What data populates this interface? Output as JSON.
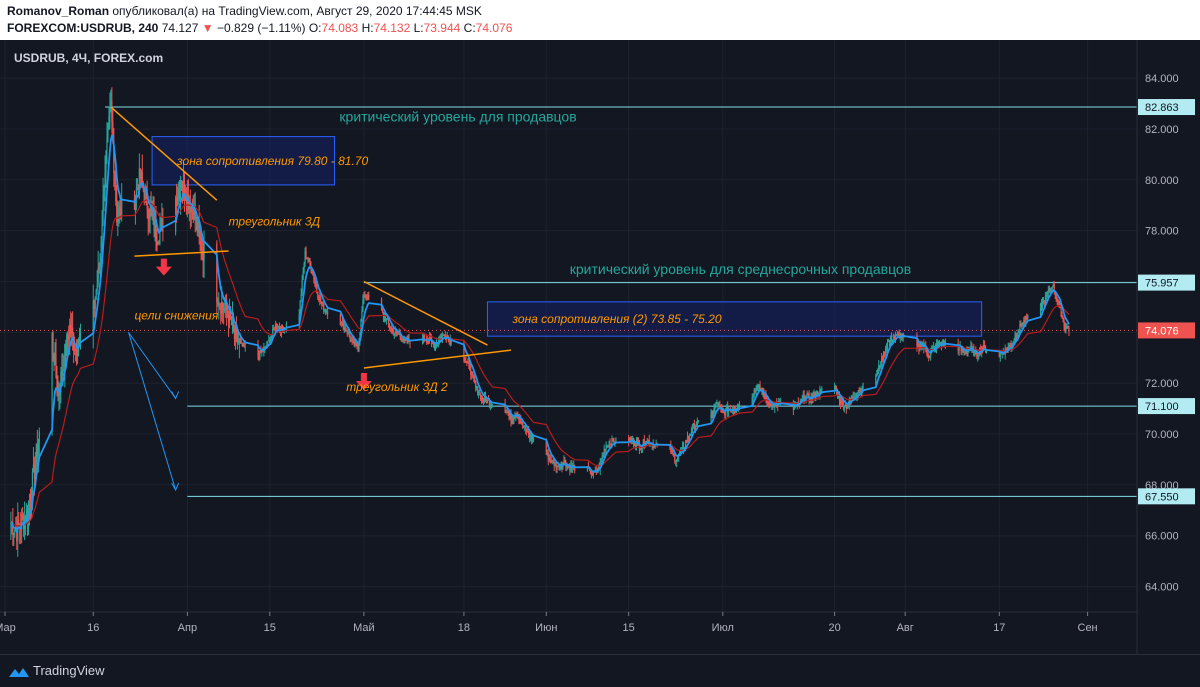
{
  "header": {
    "author": "Romanov_Roman",
    "published_text": "опубликовал(а) на TradingView.com, Август 29, 2020 17:44:45 MSK",
    "symbol": "FOREXCOM:USDRUB, 240",
    "last": "74.127",
    "change": "−0.829 (−1.11%)",
    "o_label": "O:",
    "o": "74.083",
    "h_label": "H:",
    "h": "74.132",
    "l_label": "L:",
    "l": "73.944",
    "c_label": "C:",
    "c": "74.076"
  },
  "colors": {
    "background": "#131722",
    "candle_up": "#26a69a",
    "candle_down": "#ef5350",
    "ema_fast": "#2196f3",
    "ema_slow": "#b71c1c",
    "level_line": "#80deea",
    "annotation_orange": "#ff9800",
    "annotation_green": "#26a69a",
    "zone_fill": "#142060",
    "zone_border": "#2962ff",
    "arrow_red": "#f23645",
    "arrow_blue": "#2196f3",
    "price_tag": "#ef5350"
  },
  "chart_data": {
    "type": "candlestick",
    "title": "USDRUB, 4Ч, FOREX.com",
    "ylim": [
      63,
      85.5
    ],
    "y_ticks": [
      84,
      82,
      80,
      78,
      76,
      74,
      72,
      70,
      68,
      66,
      64
    ],
    "x_ticks": [
      "Мар",
      "16",
      "Апр",
      "15",
      "Май",
      "18",
      "Июн",
      "15",
      "Июл",
      "20",
      "Авг",
      "17",
      "Сен"
    ],
    "x_tick_dates": [
      "2020-03-01",
      "2020-03-16",
      "2020-04-01",
      "2020-04-15",
      "2020-05-01",
      "2020-05-18",
      "2020-06-01",
      "2020-06-15",
      "2020-07-01",
      "2020-07-20",
      "2020-08-01",
      "2020-08-17",
      "2020-09-01"
    ],
    "x_range": [
      "2020-03-01",
      "2020-09-06"
    ],
    "grid": true,
    "close_path": [
      [
        "2020-03-01",
        66.8
      ],
      [
        "2020-03-03",
        66.2
      ],
      [
        "2020-03-05",
        67.0
      ],
      [
        "2020-03-06",
        68.6
      ],
      [
        "2020-03-09",
        73.8
      ],
      [
        "2020-03-10",
        71.5
      ],
      [
        "2020-03-11",
        72.9
      ],
      [
        "2020-03-12",
        74.2
      ],
      [
        "2020-03-13",
        73.4
      ],
      [
        "2020-03-16",
        74.8
      ],
      [
        "2020-03-17",
        76.5
      ],
      [
        "2020-03-18",
        80.5
      ],
      [
        "2020-03-19",
        82.86
      ],
      [
        "2020-03-20",
        78.6
      ],
      [
        "2020-03-23",
        79.3
      ],
      [
        "2020-03-24",
        80.1
      ],
      [
        "2020-03-25",
        79.2
      ],
      [
        "2020-03-26",
        78.4
      ],
      [
        "2020-03-27",
        77.9
      ],
      [
        "2020-03-30",
        79.3
      ],
      [
        "2020-03-31",
        79.9
      ],
      [
        "2020-04-01",
        79.3
      ],
      [
        "2020-04-02",
        78.9
      ],
      [
        "2020-04-03",
        77.7
      ],
      [
        "2020-04-06",
        75.6
      ],
      [
        "2020-04-07",
        75.0
      ],
      [
        "2020-04-08",
        74.8
      ],
      [
        "2020-04-09",
        73.8
      ],
      [
        "2020-04-10",
        73.5
      ],
      [
        "2020-04-13",
        73.1
      ],
      [
        "2020-04-14",
        73.3
      ],
      [
        "2020-04-15",
        73.7
      ],
      [
        "2020-04-16",
        74.3
      ],
      [
        "2020-04-17",
        74.1
      ],
      [
        "2020-04-20",
        74.8
      ],
      [
        "2020-04-21",
        77.1
      ],
      [
        "2020-04-22",
        76.6
      ],
      [
        "2020-04-23",
        75.6
      ],
      [
        "2020-04-24",
        75.0
      ],
      [
        "2020-04-27",
        74.4
      ],
      [
        "2020-04-28",
        74.1
      ],
      [
        "2020-04-29",
        73.6
      ],
      [
        "2020-04-30",
        73.4
      ],
      [
        "2020-05-01",
        75.5
      ],
      [
        "2020-05-04",
        74.8
      ],
      [
        "2020-05-05",
        74.4
      ],
      [
        "2020-05-06",
        74.0
      ],
      [
        "2020-05-07",
        73.9
      ],
      [
        "2020-05-08",
        73.6
      ],
      [
        "2020-05-11",
        73.8
      ],
      [
        "2020-05-12",
        73.7
      ],
      [
        "2020-05-13",
        73.5
      ],
      [
        "2020-05-14",
        73.8
      ],
      [
        "2020-05-15",
        73.9
      ],
      [
        "2020-05-18",
        73.0
      ],
      [
        "2020-05-19",
        72.6
      ],
      [
        "2020-05-20",
        71.8
      ],
      [
        "2020-05-21",
        71.4
      ],
      [
        "2020-05-22",
        71.3
      ],
      [
        "2020-05-25",
        71.0
      ],
      [
        "2020-05-26",
        70.6
      ],
      [
        "2020-05-27",
        70.9
      ],
      [
        "2020-05-28",
        70.3
      ],
      [
        "2020-05-29",
        70.0
      ],
      [
        "2020-06-01",
        69.2
      ],
      [
        "2020-06-02",
        68.9
      ],
      [
        "2020-06-03",
        68.7
      ],
      [
        "2020-06-04",
        68.9
      ],
      [
        "2020-06-05",
        68.7
      ],
      [
        "2020-06-08",
        68.6
      ],
      [
        "2020-06-09",
        68.4
      ],
      [
        "2020-06-10",
        68.7
      ],
      [
        "2020-06-11",
        69.5
      ],
      [
        "2020-06-12",
        69.7
      ],
      [
        "2020-06-15",
        69.8
      ],
      [
        "2020-06-16",
        69.7
      ],
      [
        "2020-06-17",
        69.5
      ],
      [
        "2020-06-18",
        69.8
      ],
      [
        "2020-06-19",
        69.6
      ],
      [
        "2020-06-22",
        69.4
      ],
      [
        "2020-06-23",
        69.0
      ],
      [
        "2020-06-24",
        69.3
      ],
      [
        "2020-06-25",
        69.8
      ],
      [
        "2020-06-26",
        70.3
      ],
      [
        "2020-06-29",
        70.7
      ],
      [
        "2020-06-30",
        71.2
      ],
      [
        "2020-07-01",
        70.8
      ],
      [
        "2020-07-02",
        71.0
      ],
      [
        "2020-07-03",
        71.0
      ],
      [
        "2020-07-06",
        71.5
      ],
      [
        "2020-07-07",
        72.0
      ],
      [
        "2020-07-08",
        71.5
      ],
      [
        "2020-07-09",
        71.1
      ],
      [
        "2020-07-10",
        71.2
      ],
      [
        "2020-07-13",
        71.0
      ],
      [
        "2020-07-14",
        71.2
      ],
      [
        "2020-07-15",
        71.5
      ],
      [
        "2020-07-16",
        71.4
      ],
      [
        "2020-07-17",
        71.6
      ],
      [
        "2020-07-20",
        71.9
      ],
      [
        "2020-07-21",
        71.3
      ],
      [
        "2020-07-22",
        71.1
      ],
      [
        "2020-07-23",
        71.4
      ],
      [
        "2020-07-24",
        71.7
      ],
      [
        "2020-07-27",
        72.3
      ],
      [
        "2020-07-28",
        72.9
      ],
      [
        "2020-07-29",
        73.6
      ],
      [
        "2020-07-30",
        73.8
      ],
      [
        "2020-07-31",
        73.9
      ],
      [
        "2020-08-03",
        73.4
      ],
      [
        "2020-08-04",
        73.5
      ],
      [
        "2020-08-05",
        73.1
      ],
      [
        "2020-08-06",
        73.4
      ],
      [
        "2020-08-07",
        73.6
      ],
      [
        "2020-08-10",
        73.4
      ],
      [
        "2020-08-11",
        73.2
      ],
      [
        "2020-08-12",
        73.4
      ],
      [
        "2020-08-13",
        73.1
      ],
      [
        "2020-08-14",
        73.4
      ],
      [
        "2020-08-17",
        73.1
      ],
      [
        "2020-08-18",
        73.3
      ],
      [
        "2020-08-19",
        73.5
      ],
      [
        "2020-08-20",
        74.0
      ],
      [
        "2020-08-21",
        74.4
      ],
      [
        "2020-08-24",
        75.0
      ],
      [
        "2020-08-25",
        75.4
      ],
      [
        "2020-08-26",
        75.9
      ],
      [
        "2020-08-27",
        75.2
      ],
      [
        "2020-08-28",
        74.3
      ],
      [
        "2020-08-29",
        74.08
      ]
    ],
    "series": [
      {
        "name": "USDRUB"
      }
    ],
    "horizontal_levels": [
      {
        "value": 82.863,
        "label": "82.863"
      },
      {
        "value": 75.957,
        "label": "75.957"
      },
      {
        "value": 71.1,
        "label": "71.100"
      },
      {
        "value": 67.55,
        "label": "67.550"
      }
    ],
    "current_price": {
      "value": 74.076,
      "label": "74.076"
    },
    "zones": [
      {
        "label": "зона сопротивления 79.80 - 81.70",
        "from": "2020-03-26",
        "to": "2020-04-26",
        "low": 79.8,
        "high": 81.7
      },
      {
        "label": "зона сопротивления (2) 73.85 - 75.20",
        "from": "2020-05-22",
        "to": "2020-08-14",
        "low": 73.85,
        "high": 75.2
      }
    ],
    "annotations": [
      {
        "text": "критический уровень для продавцов",
        "date": "2020-05-17",
        "price": 82.3,
        "color": "green"
      },
      {
        "text": "критический уровень для среднесрочных продавцов",
        "date": "2020-07-04",
        "price": 76.3,
        "color": "green"
      },
      {
        "text": "треугольник 3Д",
        "date": "2020-04-08",
        "price": 78.2,
        "color": "orange"
      },
      {
        "text": "треугольник 3Д 2",
        "date": "2020-04-28",
        "price": 71.7,
        "color": "orange"
      },
      {
        "text": "цели снижения",
        "date": "2020-03-23",
        "price": 74.5,
        "color": "orange"
      }
    ]
  }
}
